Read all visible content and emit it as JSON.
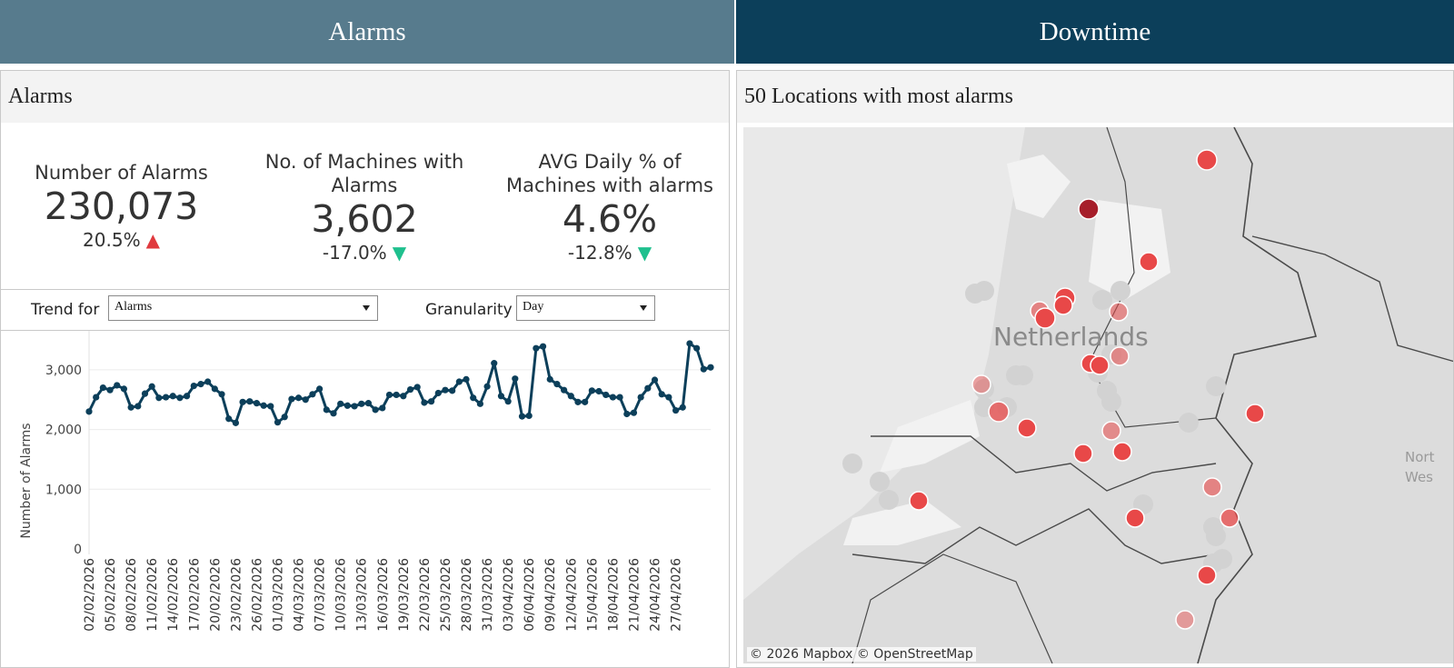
{
  "tabs": [
    {
      "label": "Alarms"
    },
    {
      "label": "Downtime"
    }
  ],
  "left": {
    "title": "Alarms",
    "kpis": [
      {
        "label_lines": [
          "Number of Alarms"
        ],
        "value": "230,073",
        "delta": "20.5%",
        "direction": "up"
      },
      {
        "label_lines": [
          "No. of Machines with",
          "Alarms"
        ],
        "value": "3,602",
        "delta": "-17.0%",
        "direction": "down"
      },
      {
        "label_lines": [
          "AVG Daily % of",
          "Machines with alarms"
        ],
        "value": "4.6%",
        "delta": "-12.8%",
        "direction": "down"
      }
    ],
    "controls": {
      "trend_label": "Trend for",
      "trend_value": "Alarms",
      "granularity_label": "Granularity",
      "granularity_value": "Day"
    }
  },
  "right": {
    "title": "50 Locations with most alarms",
    "map_label": "Netherlands",
    "map_label_edge": "Nort\nWes",
    "attribution": "© 2026 Mapbox  © OpenStreetMap"
  },
  "colors": {
    "tab_alarms": "#577b8d",
    "tab_downtime": "#0c3f5a",
    "line": "#0c3f5a",
    "up": "#e03a3e",
    "down": "#1fc08e",
    "marker": "#e84848",
    "marker_dark": "#a61e2a"
  },
  "chart_data": {
    "type": "line",
    "ylabel": "Number of Alarms",
    "ylim": [
      0,
      3500
    ],
    "yticks": [
      0,
      1000,
      2000,
      3000
    ],
    "ytick_labels": [
      "0",
      "1,000",
      "2,000",
      "3,000"
    ],
    "xtick_labels": [
      "02/02/2026",
      "05/02/2026",
      "08/02/2026",
      "11/02/2026",
      "14/02/2026",
      "17/02/2026",
      "20/02/2026",
      "23/02/2026",
      "26/02/2026",
      "01/03/2026",
      "04/03/2026",
      "07/03/2026",
      "10/03/2026",
      "13/03/2026",
      "16/03/2026",
      "19/03/2026",
      "22/03/2026",
      "25/03/2026",
      "28/03/2026",
      "31/03/2026",
      "03/04/2026",
      "06/04/2026",
      "09/04/2026",
      "12/04/2026",
      "15/04/2026",
      "18/04/2026",
      "21/04/2026",
      "24/04/2026",
      "27/04/2026"
    ],
    "series": [
      {
        "values": [
          2300,
          2540,
          2700,
          2660,
          2740,
          2680,
          2370,
          2390,
          2600,
          2720,
          2530,
          2540,
          2560,
          2530,
          2560,
          2730,
          2760,
          2800,
          2680,
          2590,
          2180,
          2110,
          2460,
          2470,
          2440,
          2400,
          2390,
          2120,
          2210,
          2510,
          2530,
          2500,
          2590,
          2680,
          2330,
          2270,
          2430,
          2400,
          2390,
          2430,
          2440,
          2330,
          2360,
          2580,
          2580,
          2560,
          2670,
          2710,
          2450,
          2470,
          2610,
          2660,
          2650,
          2800,
          2840,
          2530,
          2430,
          2720,
          3110,
          2560,
          2470,
          2850,
          2220,
          2230,
          3360,
          3390,
          2840,
          2760,
          2660,
          2560,
          2460,
          2460,
          2650,
          2640,
          2580,
          2540,
          2540,
          2260,
          2280,
          2540,
          2690,
          2830,
          2590,
          2540,
          2320,
          2370,
          3440,
          3360,
          3010,
          3040
        ]
      }
    ]
  }
}
